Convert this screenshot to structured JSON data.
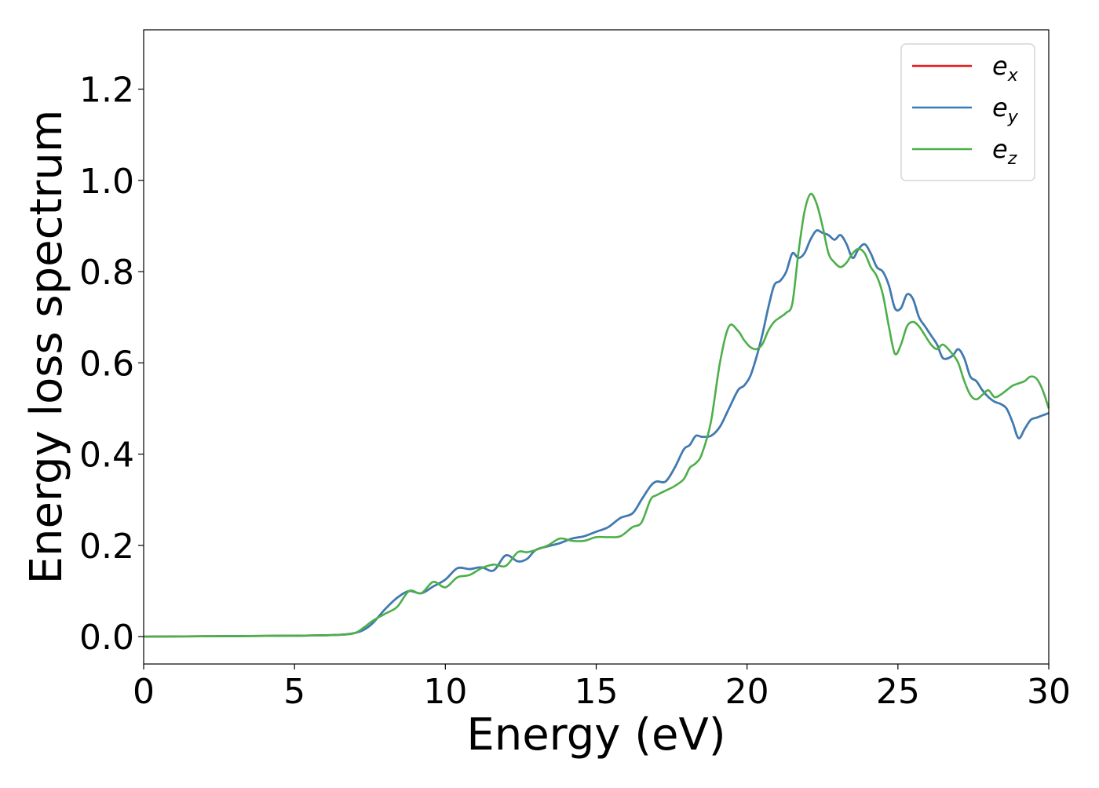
{
  "chart_data": {
    "type": "line",
    "title": "",
    "xlabel": "Energy (eV)",
    "ylabel": "Energy loss spectrum",
    "xlim": [
      0,
      30
    ],
    "ylim": [
      -0.06,
      1.33
    ],
    "xticks": [
      0,
      5,
      10,
      15,
      20,
      25,
      30
    ],
    "yticks": [
      0.0,
      0.2,
      0.4,
      0.6,
      0.8,
      1.0,
      1.2
    ],
    "xtick_labels": [
      "0",
      "5",
      "10",
      "15",
      "20",
      "25",
      "30"
    ],
    "ytick_labels": [
      "0.0",
      "0.2",
      "0.4",
      "0.6",
      "0.8",
      "1.0",
      "1.2"
    ],
    "grid": false,
    "legend": {
      "placement": "top-right"
    },
    "series": [
      {
        "name": "e_x",
        "name_base": "e",
        "name_sub": "x",
        "color": "#e41a1c",
        "x": [
          0,
          5,
          6.5,
          7.0,
          7.3,
          7.6,
          8.0,
          8.4,
          8.8,
          9.2,
          9.6,
          10.0,
          10.4,
          10.8,
          11.2,
          11.6,
          12.0,
          12.4,
          12.7,
          13.0,
          13.4,
          13.8,
          14.2,
          14.6,
          15.0,
          15.4,
          15.8,
          16.2,
          16.5,
          16.8,
          17.0,
          17.3,
          17.6,
          17.9,
          18.1,
          18.3,
          18.5,
          18.8,
          19.1,
          19.4,
          19.7,
          19.9,
          20.1,
          20.3,
          20.5,
          20.7,
          20.9,
          21.1,
          21.3,
          21.5,
          21.7,
          21.9,
          22.1,
          22.3,
          22.5,
          22.7,
          22.9,
          23.1,
          23.3,
          23.5,
          23.7,
          23.9,
          24.1,
          24.3,
          24.5,
          24.7,
          24.9,
          25.1,
          25.3,
          25.5,
          25.7,
          25.9,
          26.1,
          26.3,
          26.5,
          26.8,
          27.0,
          27.2,
          27.4,
          27.6,
          27.8,
          28.0,
          28.2,
          28.4,
          28.6,
          28.8,
          29.0,
          29.2,
          29.4,
          29.6,
          29.8,
          30.0
        ],
        "y": [
          0,
          0.002,
          0.004,
          0.008,
          0.015,
          0.03,
          0.06,
          0.085,
          0.1,
          0.095,
          0.11,
          0.125,
          0.15,
          0.148,
          0.152,
          0.145,
          0.178,
          0.165,
          0.17,
          0.19,
          0.198,
          0.205,
          0.215,
          0.22,
          0.23,
          0.24,
          0.26,
          0.27,
          0.3,
          0.33,
          0.34,
          0.34,
          0.37,
          0.41,
          0.42,
          0.44,
          0.438,
          0.44,
          0.46,
          0.5,
          0.54,
          0.55,
          0.57,
          0.61,
          0.66,
          0.72,
          0.77,
          0.78,
          0.8,
          0.84,
          0.83,
          0.84,
          0.87,
          0.89,
          0.885,
          0.88,
          0.87,
          0.88,
          0.86,
          0.83,
          0.85,
          0.86,
          0.84,
          0.81,
          0.8,
          0.77,
          0.72,
          0.72,
          0.75,
          0.74,
          0.7,
          0.68,
          0.66,
          0.64,
          0.61,
          0.615,
          0.63,
          0.61,
          0.57,
          0.56,
          0.54,
          0.525,
          0.515,
          0.51,
          0.5,
          0.47,
          0.435,
          0.455,
          0.475,
          0.48,
          0.485,
          0.49
        ]
      },
      {
        "name": "e_y",
        "name_base": "e",
        "name_sub": "y",
        "color": "#377eb8",
        "x": [
          0,
          5,
          6.5,
          7.0,
          7.3,
          7.6,
          8.0,
          8.4,
          8.8,
          9.2,
          9.6,
          10.0,
          10.4,
          10.8,
          11.2,
          11.6,
          12.0,
          12.4,
          12.7,
          13.0,
          13.4,
          13.8,
          14.2,
          14.6,
          15.0,
          15.4,
          15.8,
          16.2,
          16.5,
          16.8,
          17.0,
          17.3,
          17.6,
          17.9,
          18.1,
          18.3,
          18.5,
          18.8,
          19.1,
          19.4,
          19.7,
          19.9,
          20.1,
          20.3,
          20.5,
          20.7,
          20.9,
          21.1,
          21.3,
          21.5,
          21.7,
          21.9,
          22.1,
          22.3,
          22.5,
          22.7,
          22.9,
          23.1,
          23.3,
          23.5,
          23.7,
          23.9,
          24.1,
          24.3,
          24.5,
          24.7,
          24.9,
          25.1,
          25.3,
          25.5,
          25.7,
          25.9,
          26.1,
          26.3,
          26.5,
          26.8,
          27.0,
          27.2,
          27.4,
          27.6,
          27.8,
          28.0,
          28.2,
          28.4,
          28.6,
          28.8,
          29.0,
          29.2,
          29.4,
          29.6,
          29.8,
          30.0
        ],
        "y": [
          0,
          0.002,
          0.004,
          0.008,
          0.015,
          0.03,
          0.06,
          0.085,
          0.1,
          0.095,
          0.11,
          0.125,
          0.15,
          0.148,
          0.152,
          0.145,
          0.178,
          0.165,
          0.17,
          0.19,
          0.198,
          0.205,
          0.215,
          0.22,
          0.23,
          0.24,
          0.26,
          0.27,
          0.3,
          0.33,
          0.34,
          0.34,
          0.37,
          0.41,
          0.42,
          0.44,
          0.438,
          0.44,
          0.46,
          0.5,
          0.54,
          0.55,
          0.57,
          0.61,
          0.66,
          0.72,
          0.77,
          0.78,
          0.8,
          0.84,
          0.83,
          0.84,
          0.87,
          0.89,
          0.885,
          0.88,
          0.87,
          0.88,
          0.86,
          0.83,
          0.85,
          0.86,
          0.84,
          0.81,
          0.8,
          0.77,
          0.72,
          0.72,
          0.75,
          0.74,
          0.7,
          0.68,
          0.66,
          0.64,
          0.61,
          0.615,
          0.63,
          0.61,
          0.57,
          0.56,
          0.54,
          0.525,
          0.515,
          0.51,
          0.5,
          0.47,
          0.435,
          0.455,
          0.475,
          0.48,
          0.485,
          0.49
        ]
      },
      {
        "name": "e_z",
        "name_base": "e",
        "name_sub": "z",
        "color": "#4daf4a",
        "x": [
          0,
          5,
          6.5,
          7.0,
          7.3,
          7.6,
          8.0,
          8.4,
          8.8,
          9.2,
          9.6,
          10.0,
          10.4,
          10.8,
          11.2,
          11.6,
          12.0,
          12.4,
          12.7,
          13.0,
          13.4,
          13.8,
          14.2,
          14.6,
          15.0,
          15.4,
          15.8,
          16.2,
          16.5,
          16.8,
          17.0,
          17.3,
          17.6,
          17.9,
          18.1,
          18.3,
          18.5,
          18.8,
          19.1,
          19.4,
          19.7,
          19.9,
          20.1,
          20.3,
          20.5,
          20.7,
          20.9,
          21.1,
          21.3,
          21.5,
          21.7,
          21.9,
          22.1,
          22.3,
          22.5,
          22.7,
          22.9,
          23.1,
          23.3,
          23.5,
          23.7,
          23.9,
          24.1,
          24.3,
          24.5,
          24.7,
          24.9,
          25.1,
          25.3,
          25.5,
          25.7,
          25.9,
          26.1,
          26.3,
          26.5,
          26.8,
          27.0,
          27.2,
          27.4,
          27.6,
          27.8,
          28.0,
          28.2,
          28.4,
          28.6,
          28.8,
          29.0,
          29.2,
          29.4,
          29.6,
          29.8,
          30.0
        ],
        "y": [
          0,
          0.002,
          0.004,
          0.008,
          0.02,
          0.035,
          0.05,
          0.065,
          0.1,
          0.095,
          0.12,
          0.108,
          0.13,
          0.135,
          0.15,
          0.158,
          0.155,
          0.185,
          0.185,
          0.19,
          0.2,
          0.215,
          0.21,
          0.21,
          0.218,
          0.218,
          0.22,
          0.24,
          0.25,
          0.3,
          0.31,
          0.32,
          0.33,
          0.345,
          0.37,
          0.38,
          0.4,
          0.47,
          0.6,
          0.68,
          0.67,
          0.65,
          0.635,
          0.63,
          0.64,
          0.67,
          0.69,
          0.7,
          0.71,
          0.73,
          0.84,
          0.93,
          0.97,
          0.95,
          0.9,
          0.84,
          0.82,
          0.81,
          0.82,
          0.84,
          0.85,
          0.84,
          0.81,
          0.79,
          0.75,
          0.68,
          0.62,
          0.64,
          0.68,
          0.69,
          0.68,
          0.66,
          0.64,
          0.63,
          0.64,
          0.62,
          0.6,
          0.56,
          0.53,
          0.52,
          0.53,
          0.54,
          0.525,
          0.53,
          0.54,
          0.55,
          0.555,
          0.56,
          0.57,
          0.565,
          0.54,
          0.5
        ]
      }
    ]
  }
}
